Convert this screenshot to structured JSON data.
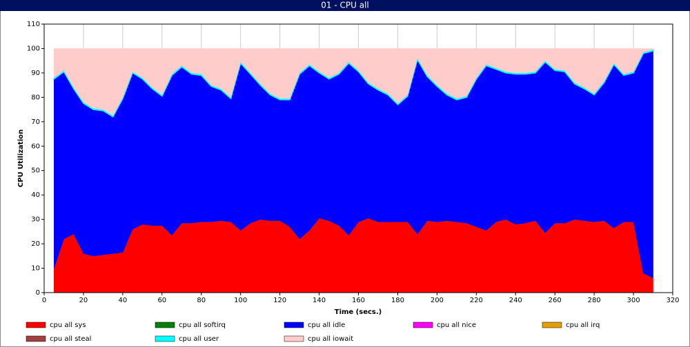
{
  "chart_data": {
    "type": "stacked_area",
    "title": "01 - CPU all",
    "x_label": "Time (secs.)",
    "y_label": "CPU Utilization",
    "x": [
      5,
      10,
      15,
      20,
      25,
      30,
      35,
      40,
      45,
      50,
      55,
      60,
      65,
      70,
      75,
      80,
      85,
      90,
      95,
      100,
      105,
      110,
      115,
      120,
      125,
      130,
      135,
      140,
      145,
      150,
      155,
      160,
      165,
      170,
      175,
      180,
      185,
      190,
      195,
      200,
      205,
      210,
      215,
      220,
      225,
      230,
      235,
      240,
      245,
      250,
      255,
      260,
      265,
      270,
      275,
      280,
      285,
      290,
      295,
      300,
      305,
      310
    ],
    "xlim": [
      0,
      320
    ],
    "xticks": [
      0,
      20,
      40,
      60,
      80,
      100,
      120,
      140,
      160,
      180,
      200,
      220,
      240,
      260,
      280,
      300,
      320
    ],
    "ylim": [
      0,
      110
    ],
    "yticks": [
      0,
      10,
      20,
      30,
      40,
      50,
      60,
      70,
      80,
      90,
      100,
      110
    ],
    "grid": "x",
    "series": [
      {
        "name": "cpu all sys",
        "color": "#ff0000",
        "values": [
          10,
          22,
          24,
          16,
          15,
          15.5,
          16,
          16.5,
          26,
          28,
          27.5,
          27.5,
          23.5,
          28.5,
          28.5,
          29,
          29,
          29.5,
          29,
          25.5,
          28.5,
          30,
          29.5,
          29.5,
          27,
          22,
          25.5,
          30.5,
          29.5,
          27.5,
          23.5,
          29,
          30.5,
          29,
          29,
          29,
          29,
          24,
          29.5,
          29,
          29.5,
          29,
          28.5,
          27,
          25.5,
          29,
          30,
          28,
          28.5,
          29.5,
          24.5,
          28.5,
          28.5,
          30,
          29.5,
          29,
          29.5,
          26.5,
          29,
          29,
          8,
          6
        ]
      },
      {
        "name": "cpu all softirq",
        "color": "#008000",
        "values": [
          0,
          0,
          0,
          0,
          0,
          0,
          0,
          0,
          0,
          0,
          0,
          0,
          0,
          0,
          0,
          0,
          0,
          0,
          0,
          0,
          0,
          0,
          0,
          0,
          0,
          0,
          0,
          0,
          0,
          0,
          0,
          0,
          0,
          0,
          0,
          0,
          0,
          0,
          0,
          0,
          0,
          0,
          0,
          0,
          0,
          0,
          0,
          0,
          0,
          0,
          0,
          0,
          0,
          0,
          0,
          0,
          0,
          0,
          0,
          0,
          0,
          0
        ]
      },
      {
        "name": "cpu all idle",
        "color": "#0000ff",
        "values": [
          77.5,
          68.5,
          59.5,
          61.5,
          60,
          59,
          56,
          63,
          64,
          59.5,
          56,
          53,
          65.5,
          64,
          61,
          60,
          55.5,
          53.5,
          50.5,
          68.5,
          61,
          55,
          51.5,
          49.5,
          52,
          67.5,
          67.5,
          59.5,
          58,
          62,
          70.5,
          61.5,
          55,
          54,
          52,
          48,
          51.5,
          71.5,
          59,
          55.5,
          51.5,
          50,
          51.5,
          60.5,
          67.5,
          62.5,
          60,
          61.5,
          61,
          60.5,
          70,
          62.5,
          62,
          55.5,
          54,
          52,
          56.5,
          67,
          60,
          61,
          90,
          93
        ]
      },
      {
        "name": "cpu all nice",
        "color": "#ff00ff",
        "values": [
          0,
          0,
          0,
          0,
          0,
          0,
          0,
          0,
          0,
          0,
          0,
          0,
          0,
          0,
          0,
          0,
          0,
          0,
          0,
          0,
          0,
          0,
          0,
          0,
          0,
          0,
          0,
          0,
          0,
          0,
          0,
          0,
          0,
          0,
          0,
          0,
          0,
          0,
          0,
          0,
          0,
          0,
          0,
          0,
          0,
          0,
          0,
          0,
          0,
          0,
          0,
          0,
          0,
          0,
          0,
          0,
          0,
          0,
          0,
          0,
          0,
          0
        ]
      },
      {
        "name": "cpu all irq",
        "color": "#e0a000",
        "values": [
          0,
          0,
          0,
          0,
          0,
          0,
          0,
          0,
          0,
          0,
          0,
          0,
          0,
          0,
          0,
          0,
          0,
          0,
          0,
          0,
          0,
          0,
          0,
          0,
          0,
          0,
          0,
          0,
          0,
          0,
          0,
          0,
          0,
          0,
          0,
          0,
          0,
          0,
          0,
          0,
          0,
          0,
          0,
          0,
          0,
          0,
          0,
          0,
          0,
          0,
          0,
          0,
          0,
          0,
          0,
          0,
          0,
          0,
          0,
          0,
          0,
          0
        ]
      },
      {
        "name": "cpu all steal",
        "color": "#a04040",
        "values": [
          0,
          0,
          0,
          0,
          0,
          0,
          0,
          0,
          0,
          0,
          0,
          0,
          0,
          0,
          0,
          0,
          0,
          0,
          0,
          0,
          0,
          0,
          0,
          0,
          0,
          0,
          0,
          0,
          0,
          0,
          0,
          0,
          0,
          0,
          0,
          0,
          0,
          0,
          0,
          0,
          0,
          0,
          0,
          0,
          0,
          0,
          0,
          0,
          0,
          0,
          0,
          0,
          0,
          0,
          0,
          0,
          0,
          0,
          0,
          0,
          0,
          0
        ]
      },
      {
        "name": "cpu all user",
        "color": "#00ffff",
        "values": [
          0.5,
          0.5,
          0.5,
          0.5,
          0.5,
          0.5,
          0.5,
          0.5,
          0.5,
          0.5,
          0.5,
          0.5,
          0.5,
          0.5,
          0.5,
          0.5,
          0.5,
          0.5,
          0.5,
          0.5,
          0.5,
          0.5,
          0.5,
          0.5,
          0.5,
          0.5,
          0.5,
          0.5,
          0.5,
          0.5,
          0.5,
          0.5,
          0.5,
          0.5,
          0.5,
          0.5,
          0.5,
          0.5,
          0.5,
          0.5,
          0.5,
          0.5,
          0.5,
          0.5,
          0.5,
          0.5,
          0.5,
          0.5,
          0.5,
          0.5,
          0.5,
          0.5,
          0.5,
          0.5,
          0.5,
          0.5,
          0.5,
          0.5,
          0.5,
          0.5,
          0.5,
          0.5
        ]
      },
      {
        "name": "cpu all iowait",
        "color": "#ffcccc",
        "values": [
          12,
          9,
          16,
          22,
          24.5,
          25,
          27.5,
          20,
          9.5,
          12,
          16,
          19,
          10.5,
          7,
          10,
          10.5,
          15,
          16.5,
          20,
          5.5,
          10,
          14.5,
          18.5,
          20.5,
          20.5,
          10,
          6.5,
          9.5,
          12,
          10,
          5.5,
          9,
          14,
          16.5,
          18.5,
          22.5,
          19,
          4,
          11,
          15,
          18.5,
          20.5,
          19.5,
          12,
          6.5,
          8,
          9.5,
          10,
          10,
          9.5,
          5,
          8.5,
          9,
          14,
          16,
          18.5,
          13.5,
          6,
          10.5,
          9.5,
          1.5,
          0.5
        ]
      }
    ]
  }
}
